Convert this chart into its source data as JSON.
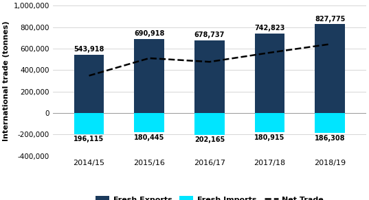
{
  "categories": [
    "2014/15",
    "2015/16",
    "2016/17",
    "2017/18",
    "2018/19"
  ],
  "exports": [
    543918,
    690918,
    678737,
    742823,
    827775
  ],
  "imports": [
    -196115,
    -180445,
    -202165,
    -180915,
    -186308
  ],
  "net_trade": [
    347803,
    510473,
    476572,
    561908,
    641467
  ],
  "export_labels": [
    "543,918",
    "690,918",
    "678,737",
    "742,823",
    "827,775"
  ],
  "import_labels": [
    "196,115",
    "180,445",
    "202,165",
    "180,915",
    "186,308"
  ],
  "export_color": "#1b3a5c",
  "import_color": "#00e5ff",
  "net_trade_color": "#000000",
  "bar_width": 0.5,
  "ylim": [
    -400000,
    1000000
  ],
  "yticks": [
    -400000,
    -200000,
    0,
    200000,
    400000,
    600000,
    800000,
    1000000
  ],
  "ylabel": "International trade (tonnes)",
  "legend_labels": [
    "Fresh Exports",
    "Fresh Imports",
    "Net Trade"
  ],
  "background_color": "#ffffff"
}
